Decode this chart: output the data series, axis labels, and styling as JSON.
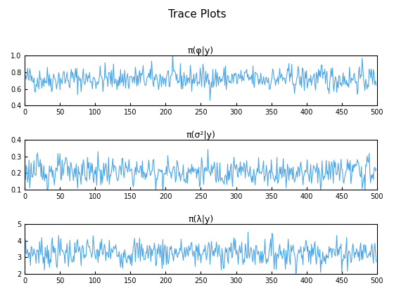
{
  "title": "Trace Plots",
  "plots": [
    {
      "title": "π(φ|y)",
      "ylim": [
        0.4,
        1.0
      ],
      "yticks": [
        0.4,
        0.6,
        0.8,
        1.0
      ],
      "mean": 0.72,
      "std": 0.08,
      "seed": 42
    },
    {
      "title": "π(σ²|y)",
      "ylim": [
        0.1,
        0.4
      ],
      "yticks": [
        0.1,
        0.2,
        0.3,
        0.4
      ],
      "mean": 0.21,
      "std": 0.045,
      "seed": 123
    },
    {
      "title": "π(λ|y)",
      "ylim": [
        2.0,
        5.0
      ],
      "yticks": [
        2,
        3,
        4,
        5
      ],
      "mean": 3.3,
      "std": 0.45,
      "seed": 7
    }
  ],
  "n": 500,
  "xlim": [
    0,
    500
  ],
  "xticks": [
    0,
    50,
    100,
    150,
    200,
    250,
    300,
    350,
    400,
    450,
    500
  ],
  "line_color": "#4DA6E8",
  "line_width": 0.8,
  "background_color": "#ffffff",
  "title_fontsize": 11,
  "subplot_title_fontsize": 9
}
